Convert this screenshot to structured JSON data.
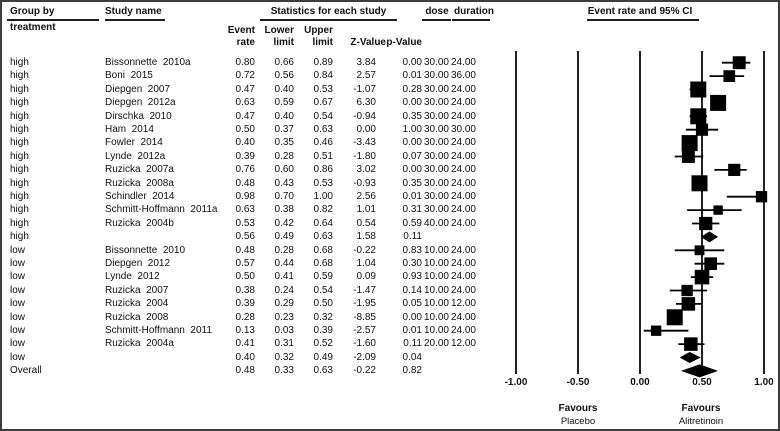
{
  "header": {
    "group_by_line1": "Group by",
    "group_by_line2": "treatment",
    "study_name": "Study name",
    "stats_title": "Statistics for each study",
    "col_event_line1": "Event",
    "col_event_line2": "rate",
    "col_lower_line1": "Lower",
    "col_lower_line2": "limit",
    "col_upper_line1": "Upper",
    "col_upper_line2": "limit",
    "col_z": "Z-Value",
    "col_p": "p-Value",
    "col_dose": "dose",
    "col_duration": "duration",
    "plot_title": "Event rate and 95% CI"
  },
  "footer": {
    "favours_left_title": "Favours",
    "favours_left_sub": "Placebo",
    "favours_right_title": "Favours",
    "favours_right_sub": "Alitretinoin"
  },
  "chart_data": {
    "type": "scatter",
    "subtype": "forest-plot-meta-analysis",
    "title": "Event rate and 95% CI",
    "xlabel": "Event rate",
    "xlim": [
      -1.0,
      1.0
    ],
    "x_ticks": [
      "-1.00",
      "-0.50",
      "0.00",
      "0.50",
      "1.00"
    ],
    "x_tick_values": [
      -1.0,
      -0.5,
      0.0,
      0.5,
      1.0
    ],
    "grid": "vertical-lines-at-ticks",
    "legend_position": "none",
    "rows": [
      {
        "group": "high",
        "study": "Bissonnette  2010a",
        "event_rate": "0.80",
        "lower": "0.66",
        "upper": "0.89",
        "z": "3.84",
        "p": "0.00",
        "dose": "30.00",
        "duration": "24.00",
        "marker": "square"
      },
      {
        "group": "high",
        "study": "Boni  2015",
        "event_rate": "0.72",
        "lower": "0.56",
        "upper": "0.84",
        "z": "2.57",
        "p": "0.01",
        "dose": "30.00",
        "duration": "36.00",
        "marker": "square"
      },
      {
        "group": "high",
        "study": "Diepgen  2007",
        "event_rate": "0.47",
        "lower": "0.40",
        "upper": "0.53",
        "z": "-1.07",
        "p": "0.28",
        "dose": "30.00",
        "duration": "24.00",
        "marker": "square"
      },
      {
        "group": "high",
        "study": "Diepgen  2012a",
        "event_rate": "0.63",
        "lower": "0.59",
        "upper": "0.67",
        "z": "6.30",
        "p": "0.00",
        "dose": "30.00",
        "duration": "24.00",
        "marker": "square"
      },
      {
        "group": "high",
        "study": "Dirschka  2010",
        "event_rate": "0.47",
        "lower": "0.40",
        "upper": "0.54",
        "z": "-0.94",
        "p": "0.35",
        "dose": "30.00",
        "duration": "24.00",
        "marker": "square"
      },
      {
        "group": "high",
        "study": "Ham  2014",
        "event_rate": "0.50",
        "lower": "0.37",
        "upper": "0.63",
        "z": "0.00",
        "p": "1.00",
        "dose": "30.00",
        "duration": "30.00",
        "marker": "square"
      },
      {
        "group": "high",
        "study": "Fowler  2014",
        "event_rate": "0.40",
        "lower": "0.35",
        "upper": "0.46",
        "z": "-3.43",
        "p": "0.00",
        "dose": "30.00",
        "duration": "24.00",
        "marker": "square"
      },
      {
        "group": "high",
        "study": "Lynde  2012a",
        "event_rate": "0.39",
        "lower": "0.28",
        "upper": "0.51",
        "z": "-1.80",
        "p": "0.07",
        "dose": "30.00",
        "duration": "24.00",
        "marker": "square"
      },
      {
        "group": "high",
        "study": "Ruzicka  2007a",
        "event_rate": "0.76",
        "lower": "0.60",
        "upper": "0.86",
        "z": "3.02",
        "p": "0.00",
        "dose": "30.00",
        "duration": "24.00",
        "marker": "square"
      },
      {
        "group": "high",
        "study": "Ruzicka  2008a",
        "event_rate": "0.48",
        "lower": "0.43",
        "upper": "0.53",
        "z": "-0.93",
        "p": "0.35",
        "dose": "30.00",
        "duration": "24.00",
        "marker": "square"
      },
      {
        "group": "high",
        "study": "Schindler  2014",
        "event_rate": "0.98",
        "lower": "0.70",
        "upper": "1.00",
        "z": "2.56",
        "p": "0.01",
        "dose": "30.00",
        "duration": "24.00",
        "marker": "square"
      },
      {
        "group": "high",
        "study": "Schmitt-Hoffmann  2011a",
        "event_rate": "0.63",
        "lower": "0.38",
        "upper": "0.82",
        "z": "1.01",
        "p": "0.31",
        "dose": "30.00",
        "duration": "24.00",
        "marker": "square"
      },
      {
        "group": "high",
        "study": "Ruzicka  2004b",
        "event_rate": "0.53",
        "lower": "0.42",
        "upper": "0.64",
        "z": "0.54",
        "p": "0.59",
        "dose": "40.00",
        "duration": "24.00",
        "marker": "square"
      },
      {
        "group": "high",
        "study": "",
        "event_rate": "0.56",
        "lower": "0.49",
        "upper": "0.63",
        "z": "1.58",
        "p": "0.11",
        "dose": "",
        "duration": "",
        "marker": "diamond"
      },
      {
        "group": "low",
        "study": "Bissonnette  2010",
        "event_rate": "0.48",
        "lower": "0.28",
        "upper": "0.68",
        "z": "-0.22",
        "p": "0.83",
        "dose": "10.00",
        "duration": "24.00",
        "marker": "square"
      },
      {
        "group": "low",
        "study": "Diepgen  2012",
        "event_rate": "0.57",
        "lower": "0.44",
        "upper": "0.68",
        "z": "1.04",
        "p": "0.30",
        "dose": "10.00",
        "duration": "24.00",
        "marker": "square"
      },
      {
        "group": "low",
        "study": "Lynde  2012",
        "event_rate": "0.50",
        "lower": "0.41",
        "upper": "0.59",
        "z": "0.09",
        "p": "0.93",
        "dose": "10.00",
        "duration": "24.00",
        "marker": "square"
      },
      {
        "group": "low",
        "study": "Ruzicka  2007",
        "event_rate": "0.38",
        "lower": "0.24",
        "upper": "0.54",
        "z": "-1.47",
        "p": "0.14",
        "dose": "10.00",
        "duration": "24.00",
        "marker": "square"
      },
      {
        "group": "low",
        "study": "Ruzicka  2004",
        "event_rate": "0.39",
        "lower": "0.29",
        "upper": "0.50",
        "z": "-1.95",
        "p": "0.05",
        "dose": "10.00",
        "duration": "12.00",
        "marker": "square"
      },
      {
        "group": "low",
        "study": "Ruzicka  2008",
        "event_rate": "0.28",
        "lower": "0.23",
        "upper": "0.32",
        "z": "-8.85",
        "p": "0.00",
        "dose": "10.00",
        "duration": "24.00",
        "marker": "square"
      },
      {
        "group": "low",
        "study": "Schmitt-Hoffmann  2011",
        "event_rate": "0.13",
        "lower": "0.03",
        "upper": "0.39",
        "z": "-2.57",
        "p": "0.01",
        "dose": "10.00",
        "duration": "24.00",
        "marker": "square"
      },
      {
        "group": "low",
        "study": "Ruzicka  2004a",
        "event_rate": "0.41",
        "lower": "0.31",
        "upper": "0.52",
        "z": "-1.60",
        "p": "0.11",
        "dose": "20.00",
        "duration": "12.00",
        "marker": "square"
      },
      {
        "group": "low",
        "study": "",
        "event_rate": "0.40",
        "lower": "0.32",
        "upper": "0.49",
        "z": "-2.09",
        "p": "0.04",
        "dose": "",
        "duration": "",
        "marker": "diamond"
      },
      {
        "group": "Overall",
        "study": "",
        "event_rate": "0.48",
        "lower": "0.33",
        "upper": "0.63",
        "z": "-0.22",
        "p": "0.82",
        "dose": "",
        "duration": "",
        "marker": "diamond-large"
      }
    ],
    "colors": {
      "marker": "#000000",
      "gridline": "#0a0a0a",
      "text": "#111111"
    }
  }
}
